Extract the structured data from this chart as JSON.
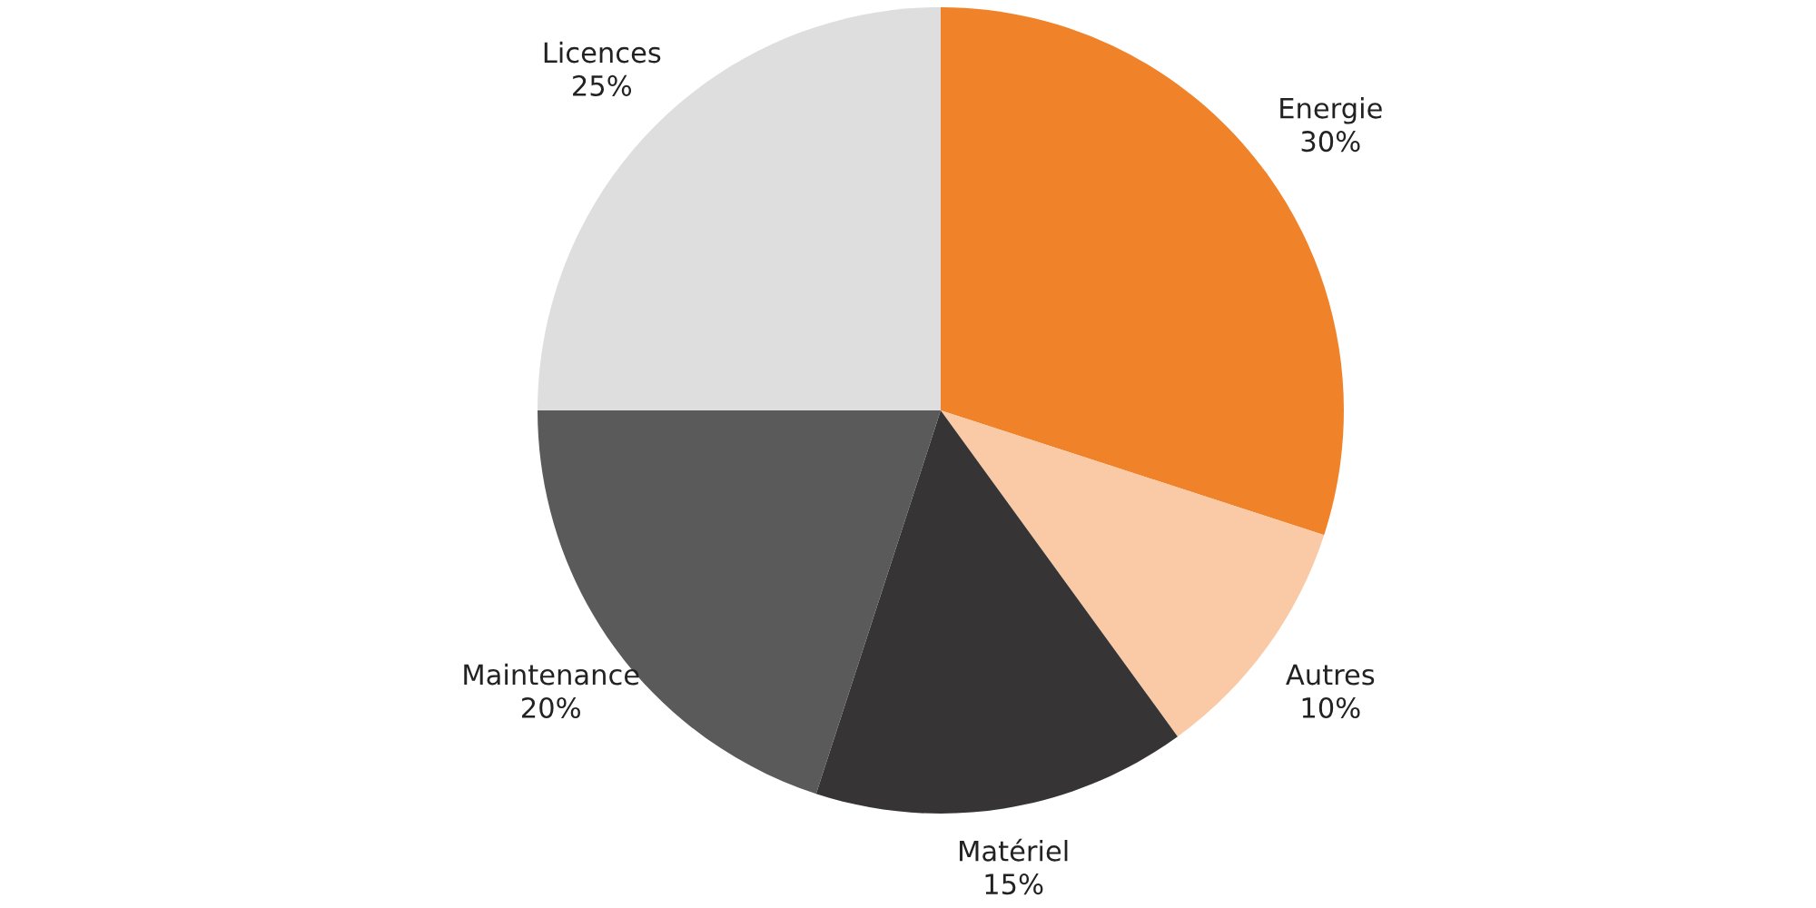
{
  "chart_data": {
    "type": "pie",
    "categories": [
      "Energie",
      "Autres",
      "Matériel",
      "Maintenance",
      "Licences"
    ],
    "values": [
      30,
      10,
      15,
      20,
      25
    ],
    "value_labels": [
      "30%",
      "10%",
      "15%",
      "20%",
      "25%"
    ],
    "colors": [
      "#f0822a",
      "#f9caa5",
      "#363434",
      "#5a5a5a",
      "#dedede"
    ]
  }
}
